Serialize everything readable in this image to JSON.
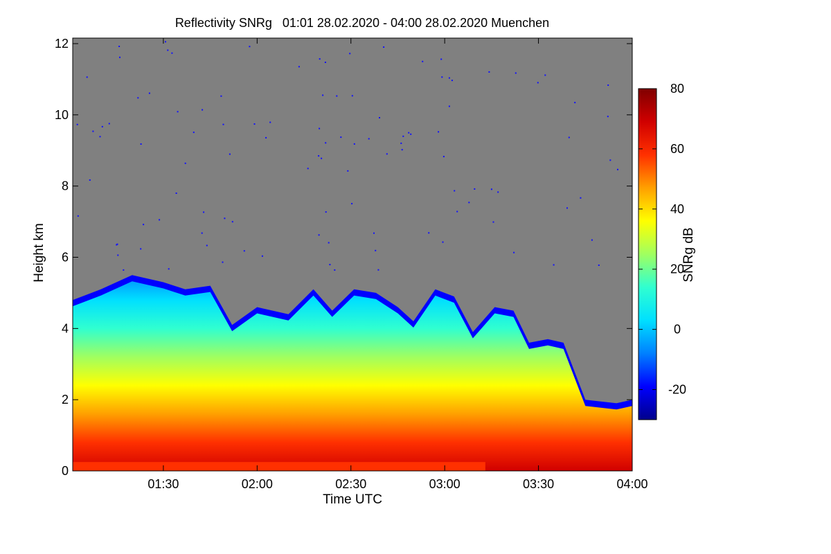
{
  "chart_data": {
    "type": "heatmap",
    "title": "Reflectivity SNRg   01:01 28.02.2020 - 04:00 28.02.2020 Muenchen",
    "xlabel": "Time UTC",
    "ylabel": "Height km",
    "colorbar_label": "SNRg dB",
    "xlim": [
      "01:01",
      "04:00"
    ],
    "ylim": [
      0,
      12
    ],
    "x_ticks": [
      "01:30",
      "02:00",
      "02:30",
      "03:00",
      "03:30",
      "04:00"
    ],
    "y_ticks": [
      "0",
      "2",
      "4",
      "6",
      "8",
      "10",
      "12"
    ],
    "colorbar_range": [
      -30,
      80
    ],
    "colorbar_ticks": [
      "-20",
      "0",
      "20",
      "40",
      "60",
      "80"
    ],
    "colormap": [
      "#00008b",
      "#0000ff",
      "#0080ff",
      "#00e0ff",
      "#30ffd0",
      "#a0ff60",
      "#ffff00",
      "#ffa000",
      "#ff3000",
      "#d00000",
      "#800000"
    ],
    "no_signal_color": "#808080",
    "echo_top_km": [
      {
        "time": "01:01",
        "top": 4.8
      },
      {
        "time": "01:10",
        "top": 5.1
      },
      {
        "time": "01:20",
        "top": 5.5
      },
      {
        "time": "01:30",
        "top": 5.3
      },
      {
        "time": "01:37",
        "top": 5.1
      },
      {
        "time": "01:45",
        "top": 5.2
      },
      {
        "time": "01:52",
        "top": 4.1
      },
      {
        "time": "02:00",
        "top": 4.6
      },
      {
        "time": "02:10",
        "top": 4.4
      },
      {
        "time": "02:18",
        "top": 5.1
      },
      {
        "time": "02:24",
        "top": 4.5
      },
      {
        "time": "02:31",
        "top": 5.1
      },
      {
        "time": "02:38",
        "top": 5.0
      },
      {
        "time": "02:45",
        "top": 4.6
      },
      {
        "time": "02:50",
        "top": 4.2
      },
      {
        "time": "02:57",
        "top": 5.1
      },
      {
        "time": "03:03",
        "top": 4.9
      },
      {
        "time": "03:09",
        "top": 3.9
      },
      {
        "time": "03:16",
        "top": 4.6
      },
      {
        "time": "03:22",
        "top": 4.5
      },
      {
        "time": "03:27",
        "top": 3.6
      },
      {
        "time": "03:33",
        "top": 3.7
      },
      {
        "time": "03:38",
        "top": 3.6
      },
      {
        "time": "03:45",
        "top": 2.0
      },
      {
        "time": "03:55",
        "top": 1.9
      },
      {
        "time": "04:00",
        "top": 2.0
      }
    ],
    "grid": false
  }
}
